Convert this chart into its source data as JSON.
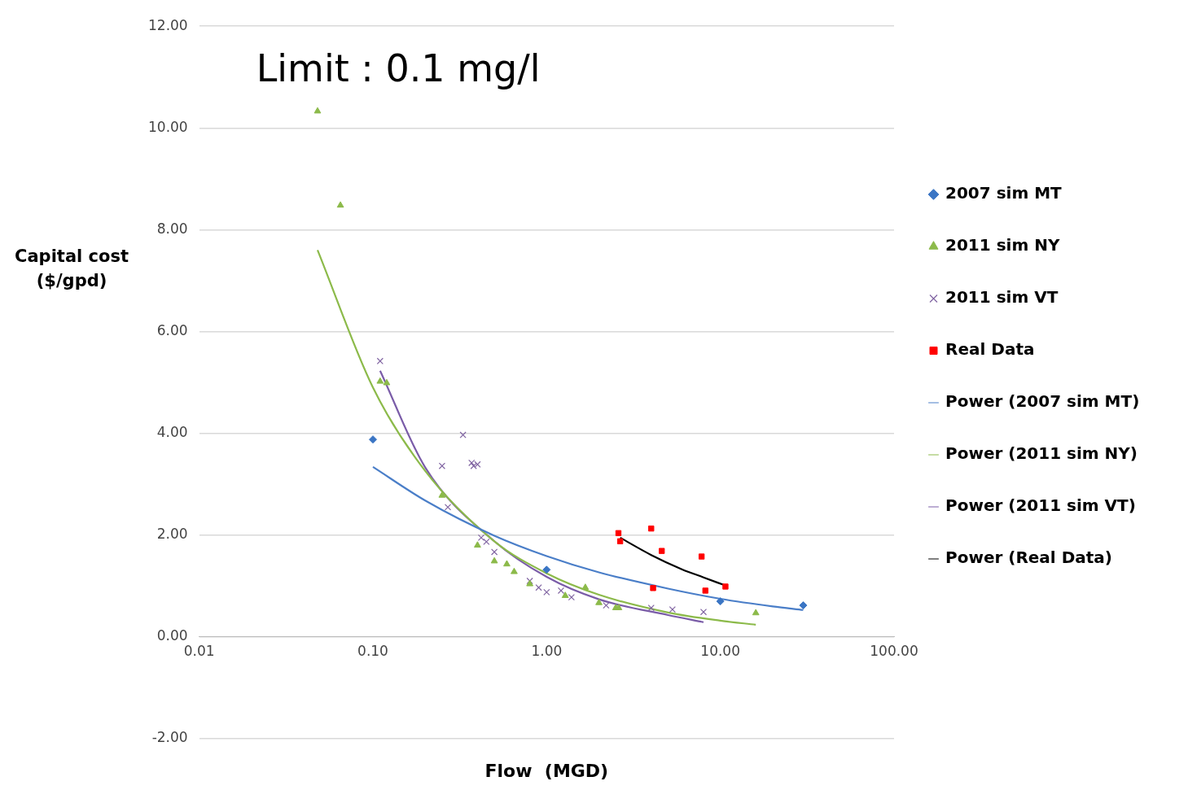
{
  "chart_data": {
    "type": "scatter",
    "title": "Limit : 0.1 mg/l",
    "xlabel": "Flow  (MGD)",
    "ylabel": "Capital cost ($/gpd)",
    "log": "x",
    "xlim": [
      0.01,
      100
    ],
    "ylim": [
      -2,
      12
    ],
    "xticks": [
      {
        "value": 0.01,
        "label": "0.01"
      },
      {
        "value": 0.1,
        "label": "0.10"
      },
      {
        "value": 1,
        "label": "1.00"
      },
      {
        "value": 10,
        "label": "10.00"
      },
      {
        "value": 100,
        "label": "100.00"
      }
    ],
    "yticks": [
      {
        "value": -2,
        "label": "-2.00"
      },
      {
        "value": 0,
        "label": "0.00"
      },
      {
        "value": 2,
        "label": "2.00"
      },
      {
        "value": 4,
        "label": "4.00"
      },
      {
        "value": 6,
        "label": "6.00"
      },
      {
        "value": 8,
        "label": "8.00"
      },
      {
        "value": 10,
        "label": "10.00"
      },
      {
        "value": 12,
        "label": "12.00"
      }
    ],
    "grid": "y",
    "legend": "right",
    "series": [
      {
        "name": "2007 sim MT",
        "marker": "diamond",
        "color": "#3a75c4",
        "x": [
          0.1,
          1.0,
          10,
          30
        ],
        "values": [
          3.88,
          1.32,
          0.7,
          0.62
        ]
      },
      {
        "name": "2011 sim NY",
        "marker": "triangle",
        "color": "#8cba4a",
        "x": [
          0.048,
          0.065,
          0.11,
          0.12,
          0.25,
          0.4,
          0.5,
          0.59,
          0.65,
          0.8,
          1.28,
          1.67,
          2.0,
          2.5,
          2.6,
          16
        ],
        "values": [
          10.33,
          8.48,
          5.02,
          4.99,
          2.78,
          1.8,
          1.49,
          1.43,
          1.28,
          1.04,
          0.81,
          0.97,
          0.67,
          0.57,
          0.57,
          0.47
        ]
      },
      {
        "name": "2011 sim VT",
        "marker": "cross",
        "color": "#8064a2",
        "x": [
          0.11,
          0.25,
          0.27,
          0.33,
          0.37,
          0.38,
          0.4,
          0.42,
          0.45,
          0.5,
          0.8,
          0.9,
          1.0,
          1.21,
          1.39,
          2.2,
          4.0,
          5.3,
          8.0
        ],
        "values": [
          5.42,
          3.36,
          2.55,
          3.97,
          3.42,
          3.36,
          3.39,
          1.95,
          1.87,
          1.67,
          1.1,
          0.97,
          0.88,
          0.91,
          0.78,
          0.62,
          0.57,
          0.54,
          0.49
        ]
      },
      {
        "name": "Real Data",
        "marker": "square",
        "color": "#ff0000",
        "x": [
          2.59,
          2.65,
          4.0,
          4.1,
          4.6,
          7.8,
          8.2,
          10.7
        ],
        "values": [
          2.04,
          1.88,
          2.13,
          0.96,
          1.69,
          1.58,
          0.91,
          0.99
        ]
      },
      {
        "name": "Power (2007 sim MT)",
        "type": "line",
        "marker": "none",
        "color": "#4a7ec8",
        "x": [
          0.1,
          0.2,
          0.5,
          1,
          2,
          5,
          10,
          20,
          30
        ],
        "values": [
          3.34,
          2.68,
          1.99,
          1.59,
          1.27,
          0.95,
          0.75,
          0.6,
          0.53
        ]
      },
      {
        "name": "Power (2011 sim NY)",
        "type": "line",
        "marker": "none",
        "color": "#8cba4a",
        "x": [
          0.048,
          0.1,
          0.2,
          0.5,
          1,
          2,
          5,
          10,
          16
        ],
        "values": [
          7.6,
          4.9,
          3.26,
          1.88,
          1.25,
          0.83,
          0.48,
          0.32,
          0.24
        ]
      },
      {
        "name": "Power (2011 sim VT)",
        "type": "line",
        "marker": "none",
        "color": "#7a5ca8",
        "x": [
          0.11,
          0.2,
          0.5,
          1,
          2,
          5,
          8
        ],
        "values": [
          5.23,
          3.33,
          1.88,
          1.18,
          0.74,
          0.43,
          0.29
        ]
      },
      {
        "name": "Power (Real Data)",
        "type": "line",
        "marker": "none",
        "color": "#000000",
        "x": [
          2.65,
          4,
          6,
          8,
          10.5
        ],
        "values": [
          1.95,
          1.61,
          1.33,
          1.17,
          1.02
        ]
      }
    ]
  }
}
